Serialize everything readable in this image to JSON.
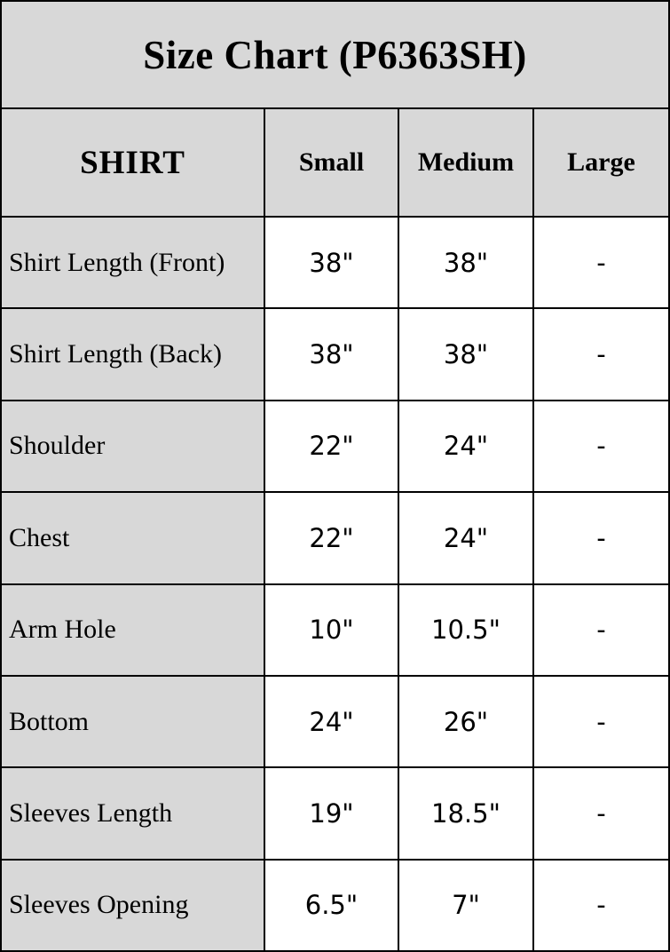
{
  "colors": {
    "band_gray": "#d8d8d8",
    "cell_white": "#ffffff",
    "grid_black": "#000000",
    "text_black": "#000000"
  },
  "chart_data": {
    "type": "table",
    "title": "Size Chart (P6363SH)",
    "columns": [
      "SHIRT",
      "Small",
      "Medium",
      "Large"
    ],
    "rows": [
      {
        "label": "Shirt Length (Front)",
        "small": "38\"",
        "medium": "38\"",
        "large": "-"
      },
      {
        "label": "Shirt Length (Back)",
        "small": "38\"",
        "medium": "38\"",
        "large": "-"
      },
      {
        "label": "Shoulder",
        "small": "22\"",
        "medium": "24\"",
        "large": "-"
      },
      {
        "label": "Chest",
        "small": "22\"",
        "medium": "24\"",
        "large": "-"
      },
      {
        "label": "Arm Hole",
        "small": "10\"",
        "medium": "10.5\"",
        "large": "-"
      },
      {
        "label": "Bottom",
        "small": "24\"",
        "medium": "26\"",
        "large": "-"
      },
      {
        "label": "Sleeves Length",
        "small": "19\"",
        "medium": "18.5\"",
        "large": "-"
      },
      {
        "label": "Sleeves Opening",
        "small": "6.5\"",
        "medium": "7\"",
        "large": "-"
      }
    ]
  }
}
